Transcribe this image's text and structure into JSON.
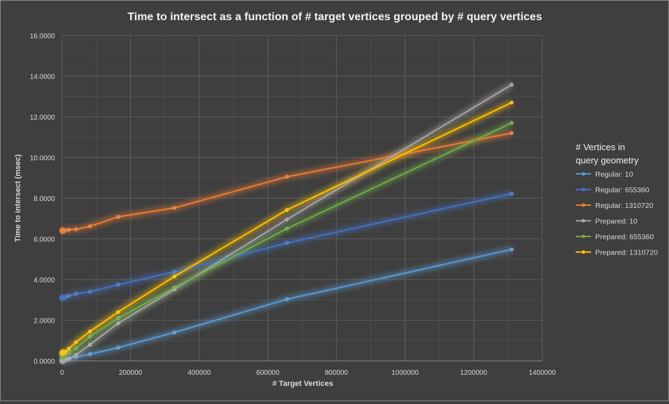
{
  "chart_data": {
    "type": "line",
    "title": "Time to intersect as a function of # target vertices grouped by # query vertices",
    "xlabel": "# Target Vertices",
    "ylabel": "Time to intersect (msec)",
    "xlim": [
      0,
      1400000
    ],
    "ylim": [
      0,
      16
    ],
    "x_ticks": [
      "0",
      "200000",
      "400000",
      "600000",
      "800000",
      "1000000",
      "1200000",
      "1400000"
    ],
    "y_ticks": [
      "0.0000",
      "2.0000",
      "4.0000",
      "6.0000",
      "8.0000",
      "10.0000",
      "12.0000",
      "14.0000",
      "16.0000"
    ],
    "grid": true,
    "legend_position": "right",
    "legend_title": "# Vertices in query geometry",
    "x": [
      10,
      1280,
      2560,
      5120,
      10240,
      20480,
      40960,
      81920,
      163840,
      327680,
      655360,
      1310720
    ],
    "series": [
      {
        "name": "Regular: 10",
        "color": "#5b9bd5",
        "values": [
          0.03,
          0.03,
          0.04,
          0.05,
          0.07,
          0.12,
          0.18,
          0.33,
          0.65,
          1.4,
          3.03,
          5.48
        ]
      },
      {
        "name": "Regular: 655360",
        "color": "#4472c4",
        "values": [
          3.1,
          3.1,
          3.11,
          3.12,
          3.13,
          3.2,
          3.3,
          3.4,
          3.75,
          4.38,
          5.8,
          8.22
        ]
      },
      {
        "name": "Regular: 1310720",
        "color": "#ed7d31",
        "values": [
          6.4,
          6.4,
          6.4,
          6.41,
          6.42,
          6.45,
          6.47,
          6.62,
          7.08,
          7.52,
          9.05,
          11.2
        ]
      },
      {
        "name": "Prepared: 10",
        "color": "#a5a5a5",
        "values": [
          0.01,
          0.01,
          0.02,
          0.02,
          0.03,
          0.1,
          0.3,
          0.8,
          1.85,
          3.52,
          6.95,
          13.58
        ]
      },
      {
        "name": "Prepared: 655360",
        "color": "#70ad47",
        "values": [
          0.25,
          0.25,
          0.26,
          0.27,
          0.29,
          0.4,
          0.62,
          1.2,
          2.1,
          3.6,
          6.5,
          11.7
        ]
      },
      {
        "name": "Prepared: 1310720",
        "color": "#ffc000",
        "values": [
          0.4,
          0.4,
          0.41,
          0.42,
          0.46,
          0.6,
          0.92,
          1.45,
          2.4,
          4.15,
          7.42,
          12.7
        ]
      }
    ]
  }
}
